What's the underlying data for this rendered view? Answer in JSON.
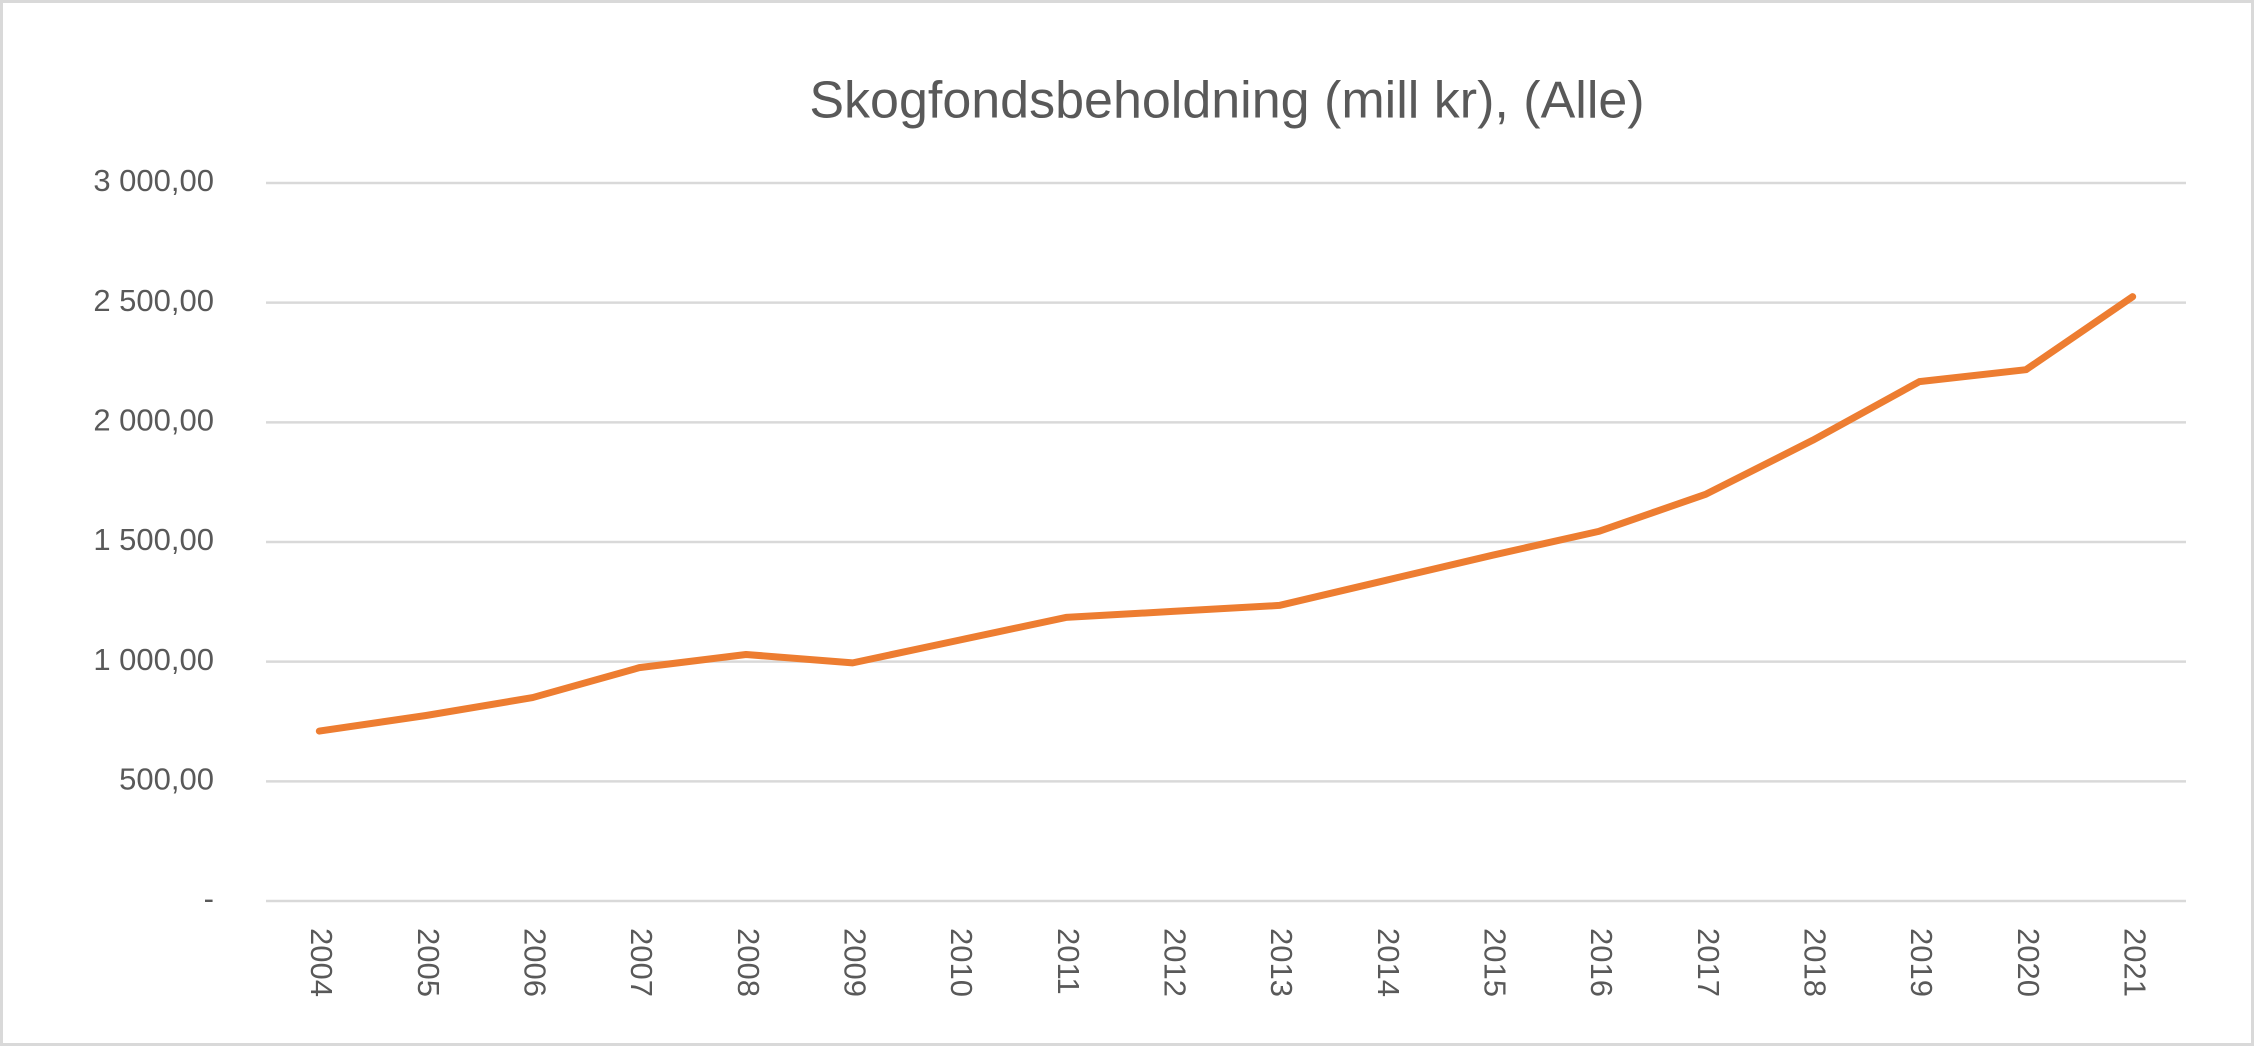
{
  "chart_data": {
    "type": "line",
    "title": "Skogfondsbeholdning  (mill kr), (Alle)",
    "categories": [
      "2004",
      "2005",
      "2006",
      "2007",
      "2008",
      "2009",
      "2010",
      "2011",
      "2012",
      "2013",
      "2014",
      "2015",
      "2016",
      "2017",
      "2018",
      "2019",
      "2020",
      "2021"
    ],
    "series": [
      {
        "name": "Alle",
        "color": "#ed7d31",
        "values": [
          710,
          775,
          850,
          975,
          1030,
          995,
          1090,
          1185,
          1210,
          1235,
          1340,
          1445,
          1545,
          1700,
          1925,
          2170,
          2220,
          2525
        ]
      }
    ],
    "ylim": [
      0,
      3000
    ],
    "yticks": [
      {
        "value": 0,
        "label": "-"
      },
      {
        "value": 500,
        "label": "500,00"
      },
      {
        "value": 1000,
        "label": "1 000,00"
      },
      {
        "value": 1500,
        "label": "1 500,00"
      },
      {
        "value": 2000,
        "label": "2 000,00"
      },
      {
        "value": 2500,
        "label": "2 500,00"
      },
      {
        "value": 3000,
        "label": "3 000,00"
      }
    ],
    "grid": true
  }
}
